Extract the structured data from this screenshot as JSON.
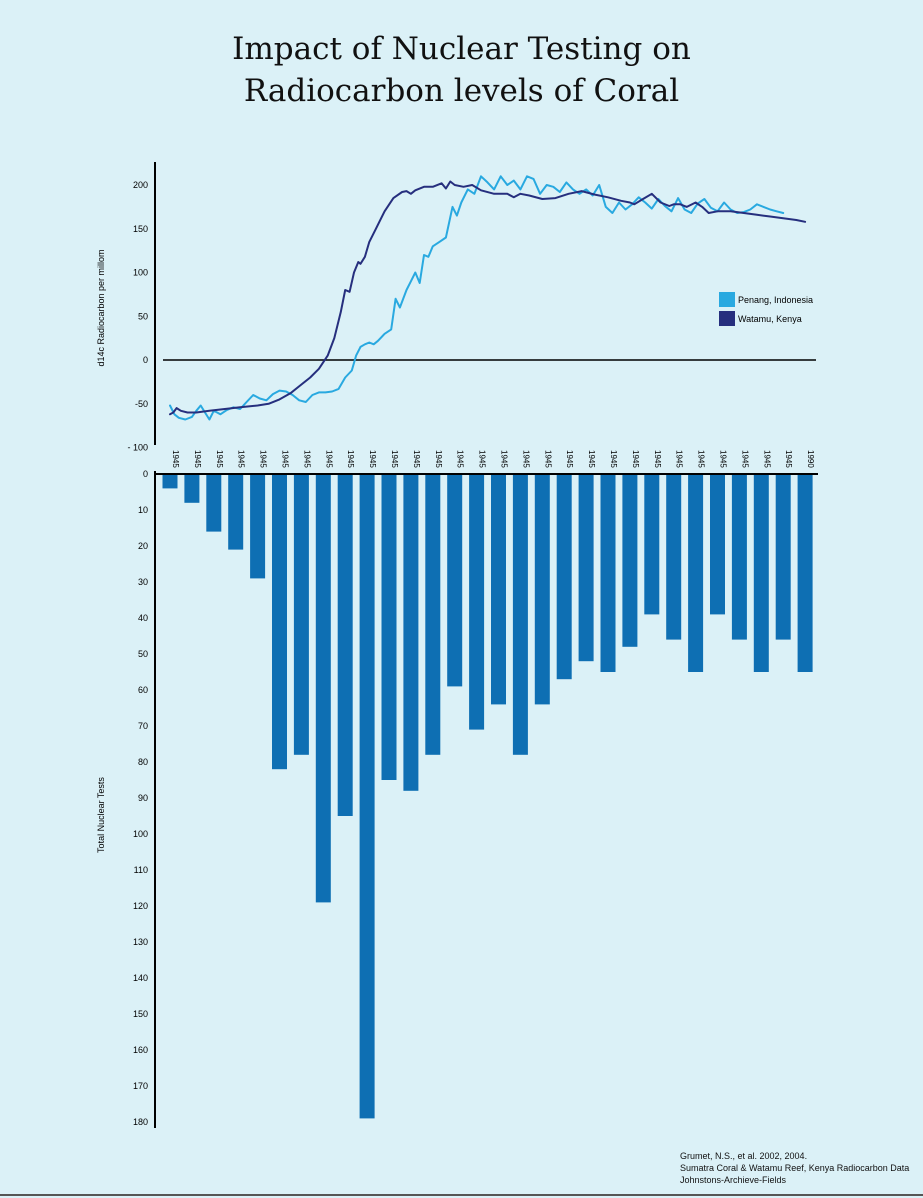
{
  "title_lines": [
    "Impact of Nuclear Testing on",
    "Radiocarbon levels of Coral"
  ],
  "source_lines": [
    "Grumet, N.S., et al. 2002, 2004.",
    "Sumatra Coral & Watamu Reef, Kenya Radiocarbon Data",
    "Johnstons-Archieve-Fields"
  ],
  "chart_data": [
    {
      "type": "line",
      "ylabel": "d14c Radiocarbon per millom",
      "ylim": [
        -100,
        225
      ],
      "yticks": [
        200,
        150,
        100,
        50,
        0,
        -50,
        -100
      ],
      "ytick_labels": [
        "200",
        "150",
        "100",
        "50",
        "0",
        "-50",
        "- 100"
      ],
      "xlim": [
        0,
        29.5
      ],
      "grid": false,
      "zero_line": true,
      "legend_position": "right",
      "colors": {
        "Penang, Indonesia": "#29a9e0",
        "Watamu, Kenya": "#262f7e"
      },
      "series": [
        {
          "name": "Penang, Indonesia",
          "x": [
            0,
            0.2,
            0.4,
            0.7,
            1.0,
            1.2,
            1.4,
            1.6,
            1.8,
            2.0,
            2.3,
            2.6,
            2.9,
            3.2,
            3.5,
            3.8,
            4.1,
            4.4,
            4.7,
            5.0,
            5.3,
            5.6,
            5.9,
            6.2,
            6.5,
            6.8,
            7.1,
            7.4,
            7.7,
            8.0,
            8.3,
            8.5,
            8.7,
            8.9,
            9.1,
            9.3,
            9.5,
            9.8,
            10.1,
            10.3,
            10.5,
            10.8,
            11.0,
            11.2,
            11.4,
            11.6,
            11.8,
            12.0,
            12.3,
            12.6,
            12.9,
            13.1,
            13.3,
            13.6,
            13.9,
            14.2,
            14.5,
            14.8,
            15.1,
            15.4,
            15.7,
            16.0,
            16.3,
            16.6,
            16.9,
            17.2,
            17.5,
            17.8,
            18.1,
            18.4,
            18.7,
            19.0,
            19.3,
            19.6,
            19.9,
            20.2,
            20.5,
            20.8,
            21.1,
            21.4,
            21.7,
            22.0,
            22.3,
            22.6,
            22.9,
            23.2,
            23.5,
            23.8,
            24.1,
            24.4,
            24.7,
            25.0,
            25.3,
            25.6,
            25.9,
            26.2,
            26.5,
            26.8,
            27.1,
            27.4,
            27.7,
            28.0
          ],
          "values": [
            -52,
            -62,
            -66,
            -68,
            -65,
            -58,
            -52,
            -60,
            -68,
            -58,
            -62,
            -57,
            -54,
            -56,
            -48,
            -40,
            -44,
            -46,
            -39,
            -35,
            -36,
            -40,
            -46,
            -48,
            -40,
            -37,
            -37,
            -36,
            -33,
            -20,
            -12,
            5,
            15,
            18,
            20,
            18,
            22,
            30,
            35,
            70,
            60,
            80,
            90,
            100,
            88,
            120,
            118,
            130,
            135,
            140,
            175,
            165,
            180,
            195,
            190,
            210,
            203,
            195,
            210,
            200,
            205,
            195,
            210,
            207,
            190,
            200,
            198,
            192,
            203,
            195,
            190,
            195,
            188,
            200,
            175,
            168,
            180,
            172,
            178,
            186,
            180,
            173,
            184,
            176,
            170,
            185,
            172,
            168,
            179,
            184,
            174,
            170,
            180,
            172,
            168,
            169,
            172,
            178,
            175,
            172,
            170,
            168
          ],
          "notes": "approximate readings; x in year-tick units"
        },
        {
          "name": "Watamu, Kenya",
          "x": [
            0,
            0.15,
            0.3,
            0.5,
            0.8,
            1.2,
            1.8,
            2.5,
            3.2,
            4.0,
            4.5,
            5.0,
            5.5,
            6.0,
            6.4,
            6.8,
            7.2,
            7.5,
            7.8,
            8.0,
            8.2,
            8.4,
            8.6,
            8.7,
            8.9,
            9.1,
            9.4,
            9.8,
            10.2,
            10.6,
            10.8,
            11.0,
            11.2,
            11.6,
            12.0,
            12.4,
            12.6,
            12.8,
            13.0,
            13.4,
            13.8,
            14.2,
            14.8,
            15.4,
            15.7,
            16.0,
            16.4,
            17.0,
            17.6,
            18.2,
            18.8,
            19.4,
            20.0,
            20.6,
            21.0,
            21.2,
            21.6,
            22.0,
            22.4,
            22.8,
            23.0,
            23.3,
            23.6,
            24.0,
            24.3,
            24.6,
            25.0,
            25.6,
            26.2,
            26.8,
            27.4,
            28.0,
            28.6,
            29.0
          ],
          "values": [
            -62,
            -60,
            -55,
            -58,
            -60,
            -60,
            -58,
            -56,
            -54,
            -52,
            -50,
            -45,
            -38,
            -28,
            -20,
            -10,
            5,
            25,
            55,
            80,
            78,
            100,
            112,
            110,
            118,
            135,
            150,
            170,
            185,
            192,
            193,
            190,
            194,
            198,
            198,
            202,
            196,
            204,
            200,
            198,
            200,
            194,
            190,
            190,
            186,
            190,
            188,
            184,
            185,
            190,
            193,
            189,
            186,
            182,
            180,
            178,
            184,
            190,
            180,
            176,
            178,
            178,
            175,
            180,
            175,
            168,
            170,
            170,
            168,
            166,
            164,
            162,
            160,
            158
          ],
          "notes": "approximate readings; x in year-tick units"
        }
      ]
    },
    {
      "type": "bar",
      "ylabel": "Total Nuclear Tests",
      "ylim": [
        0,
        180
      ],
      "inverted": true,
      "yticks": [
        0,
        10,
        20,
        30,
        40,
        50,
        60,
        70,
        80,
        90,
        100,
        110,
        120,
        130,
        140,
        150,
        160,
        170,
        180
      ],
      "ytick_labels": [
        "0",
        "10",
        "20",
        "30",
        "40",
        "50",
        "60",
        "70",
        "80",
        "90",
        "100",
        "110",
        "120",
        "130",
        "140",
        "150",
        "160",
        "170",
        "180"
      ],
      "categories": [
        "1945",
        "1945",
        "1945",
        "1945",
        "1945",
        "1945",
        "1945",
        "1945",
        "1945",
        "1945",
        "1945",
        "1945",
        "1945",
        "1945",
        "1945",
        "1945",
        "1945",
        "1945",
        "1945",
        "1945",
        "1945",
        "1945",
        "1945",
        "1945",
        "1945",
        "1945",
        "1945",
        "1945",
        "1945",
        "1990"
      ],
      "values": [
        4,
        8,
        16,
        21,
        29,
        82,
        78,
        119,
        95,
        179,
        85,
        88,
        78,
        59,
        71,
        64,
        78,
        64,
        57,
        52,
        55,
        48,
        39,
        46,
        55,
        39,
        46,
        55,
        46,
        55
      ],
      "bar_color": "#0e6fb3",
      "grid": false
    }
  ]
}
